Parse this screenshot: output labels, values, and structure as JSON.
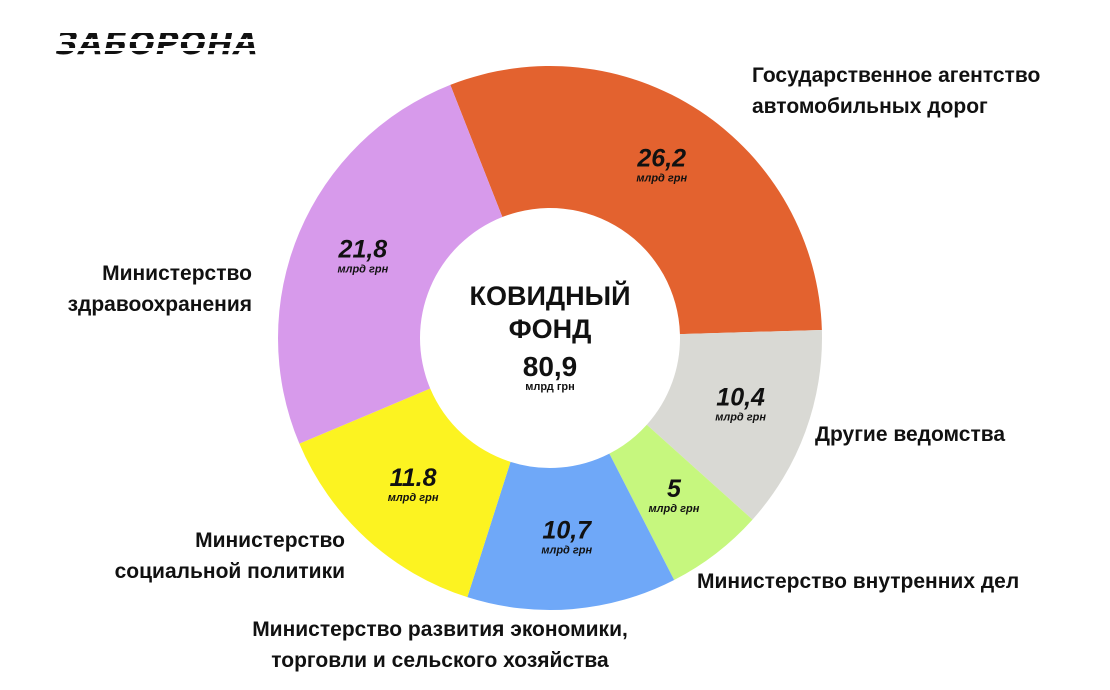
{
  "logo": {
    "text": "ЗАБОРОНА"
  },
  "chart_data": {
    "type": "pie",
    "center": {
      "title_lines": [
        "КОВИДНЫЙ",
        "ФОНД"
      ],
      "value": "80,9",
      "unit": "млрд грн"
    },
    "unit": "млрд грн",
    "slices": [
      {
        "id": "agency",
        "label_lines": [
          "Государственное агентство",
          "автомобильных дорог"
        ],
        "value": 26.2,
        "display": "26,2",
        "color": "#E3622F"
      },
      {
        "id": "other",
        "label_lines": [
          "Другие ведомства"
        ],
        "value": 10.4,
        "display": "10,4",
        "color": "#D9D9D4"
      },
      {
        "id": "internal",
        "label_lines": [
          "Министерство внутренних дел"
        ],
        "value": 5,
        "display": "5",
        "color": "#C6F77E"
      },
      {
        "id": "economy",
        "label_lines": [
          "Министерство развития экономики,",
          "торговли и сельского хозяйства"
        ],
        "value": 10.7,
        "display": "10,7",
        "color": "#6FA8F8"
      },
      {
        "id": "social",
        "label_lines": [
          "Министерство",
          "социальной политики"
        ],
        "value": 11.8,
        "display": "11.8",
        "color": "#FCF321"
      },
      {
        "id": "health",
        "label_lines": [
          "Министерство",
          "здравоохранения"
        ],
        "value": 21.8,
        "display": "21,8",
        "color": "#D79AEB"
      }
    ]
  }
}
